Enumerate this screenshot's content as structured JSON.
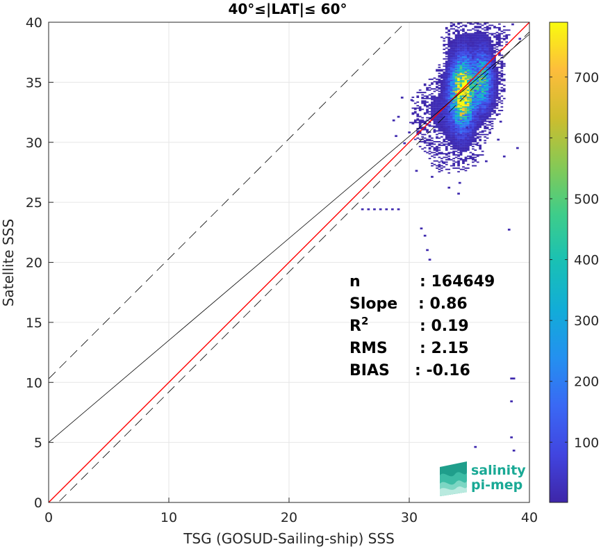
{
  "chart_data": {
    "type": "heatmap",
    "title": "40°≤|LAT|≤ 60°",
    "xlabel": "TSG (GOSUD-Sailing-ship) SSS",
    "ylabel": "Satellite SSS",
    "xlim": [
      0,
      40
    ],
    "ylim": [
      0,
      40
    ],
    "xticks": [
      "0",
      "10",
      "20",
      "30",
      "40"
    ],
    "yticks": [
      "0",
      "5",
      "10",
      "15",
      "20",
      "25",
      "30",
      "35",
      "40"
    ],
    "grid": true,
    "colorbar": {
      "range": [
        1,
        790
      ],
      "ticks": [
        "100",
        "200",
        "300",
        "400",
        "500",
        "600",
        "700"
      ],
      "colormap": "parula"
    },
    "lines": [
      {
        "kind": "one-to-one",
        "color": "#ff0000",
        "points": [
          [
            0,
            0
          ],
          [
            40,
            40
          ]
        ]
      },
      {
        "kind": "regression",
        "color": "#000000",
        "points": [
          [
            0,
            5.0
          ],
          [
            40,
            39.0
          ]
        ]
      },
      {
        "kind": "upper-bound",
        "color": "#000000",
        "dashed": true,
        "points": [
          [
            0,
            10.3
          ],
          [
            40,
            50.3
          ]
        ]
      },
      {
        "kind": "lower-bound",
        "color": "#000000",
        "dashed": true,
        "points": [
          [
            0,
            -0.8
          ],
          [
            40,
            39.2
          ]
        ]
      }
    ],
    "density_clusters": [
      {
        "x": 34.3,
        "y": 34.0,
        "sx": 0.55,
        "sy": 1.6,
        "peak": 760
      },
      {
        "x": 36.0,
        "y": 35.3,
        "sx": 0.45,
        "sy": 1.3,
        "peak": 330
      },
      {
        "x": 35.2,
        "y": 34.6,
        "sx": 0.9,
        "sy": 1.3,
        "peak": 120
      },
      {
        "x": 33.0,
        "y": 32.5,
        "sx": 1.2,
        "sy": 1.3,
        "peak": 22
      },
      {
        "x": 35.5,
        "y": 38.8,
        "sx": 1.3,
        "sy": 0.7,
        "peak": 10
      },
      {
        "x": 33.5,
        "y": 29.6,
        "sx": 1.6,
        "sy": 1.3,
        "peak": 4
      }
    ],
    "sparse_points": [
      [
        26.0,
        24.4
      ],
      [
        27.0,
        24.4
      ],
      [
        28.0,
        24.4
      ],
      [
        29.0,
        24.4
      ],
      [
        26.5,
        24.4
      ],
      [
        27.5,
        24.4
      ],
      [
        28.5,
        24.4
      ],
      [
        31.2,
        22.2
      ],
      [
        31.4,
        21.0
      ],
      [
        30.9,
        22.8
      ],
      [
        31.6,
        20.2
      ],
      [
        38.2,
        22.7
      ],
      [
        38.4,
        10.3
      ],
      [
        38.6,
        10.3
      ],
      [
        38.4,
        8.4
      ],
      [
        38.4,
        5.4
      ],
      [
        35.4,
        4.6
      ],
      [
        38.6,
        4.3
      ],
      [
        34.1,
        26.6
      ],
      [
        34.0,
        25.7
      ],
      [
        33.2,
        26.2
      ],
      [
        36.3,
        28.4
      ],
      [
        38.9,
        29.5
      ],
      [
        37.8,
        28.8
      ],
      [
        37.3,
        30.2
      ],
      [
        28.8,
        30.5
      ],
      [
        29.5,
        29.9
      ],
      [
        30.5,
        27.6
      ],
      [
        31.8,
        27.1
      ],
      [
        32.7,
        28.3
      ],
      [
        29.3,
        33.7
      ],
      [
        29.0,
        32.1
      ],
      [
        28.6,
        31.8
      ],
      [
        30.6,
        31.1
      ],
      [
        37.5,
        31.7
      ],
      [
        36.8,
        33.2
      ],
      [
        31.4,
        33.0
      ],
      [
        30.1,
        33.5
      ],
      [
        37.8,
        36.5
      ],
      [
        38.5,
        39.8
      ],
      [
        37.4,
        39.4
      ],
      [
        33.9,
        39.3
      ],
      [
        34.7,
        31.2
      ],
      [
        35.5,
        29.8
      ],
      [
        32.8,
        30.1
      ],
      [
        30.2,
        32.4
      ],
      [
        39.1,
        38.6
      ],
      [
        29.9,
        30.8
      ]
    ]
  },
  "stats": [
    {
      "label": "n",
      "value": ": 164649"
    },
    {
      "label": "Slope",
      "value": ": 0.86"
    },
    {
      "label": "R",
      "sup": "2",
      "value": ": 0.19"
    },
    {
      "label": "RMS",
      "value": ": 2.15"
    },
    {
      "label": "BIAS",
      "value": ": -0.16"
    }
  ],
  "logo": {
    "line1": "salinity",
    "line2": "pi-mep"
  }
}
